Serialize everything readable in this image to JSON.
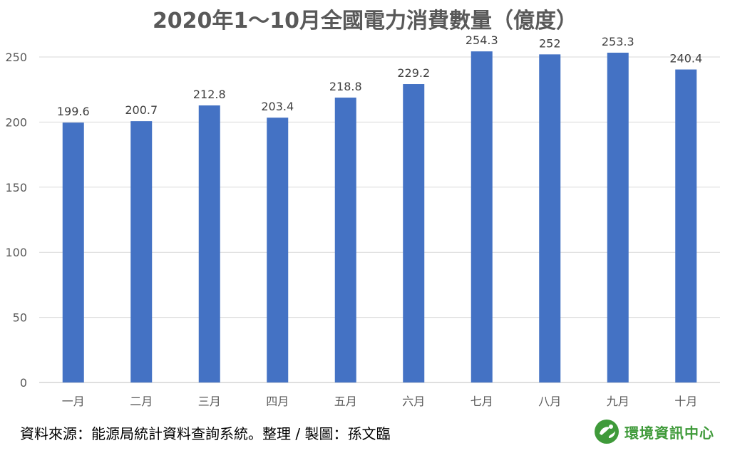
{
  "chart_data": {
    "type": "bar",
    "title": "2020年1～10月全國電力消費數量（億度）",
    "categories": [
      "一月",
      "二月",
      "三月",
      "四月",
      "五月",
      "六月",
      "七月",
      "八月",
      "九月",
      "十月"
    ],
    "values": [
      199.6,
      200.7,
      212.8,
      203.4,
      218.8,
      229.2,
      254.3,
      252,
      253.3,
      240.4
    ],
    "value_labels": [
      "199.6",
      "200.7",
      "212.8",
      "203.4",
      "218.8",
      "229.2",
      "254.3",
      "252",
      "253.3",
      "240.4"
    ],
    "yticks": [
      0,
      50,
      100,
      150,
      200,
      250
    ],
    "ylim": [
      0,
      250
    ],
    "xlabel": "",
    "ylabel": "",
    "grid": true,
    "legend": "none",
    "bar_color": "#4472c4"
  },
  "footer": {
    "source": "資料來源：能源局統計資料查詢系統。整理 / 製圖：孫文臨"
  },
  "logo": {
    "text": "環境資訊中心",
    "color": "#3f9a3a",
    "icon": "earth-leaf-icon"
  }
}
